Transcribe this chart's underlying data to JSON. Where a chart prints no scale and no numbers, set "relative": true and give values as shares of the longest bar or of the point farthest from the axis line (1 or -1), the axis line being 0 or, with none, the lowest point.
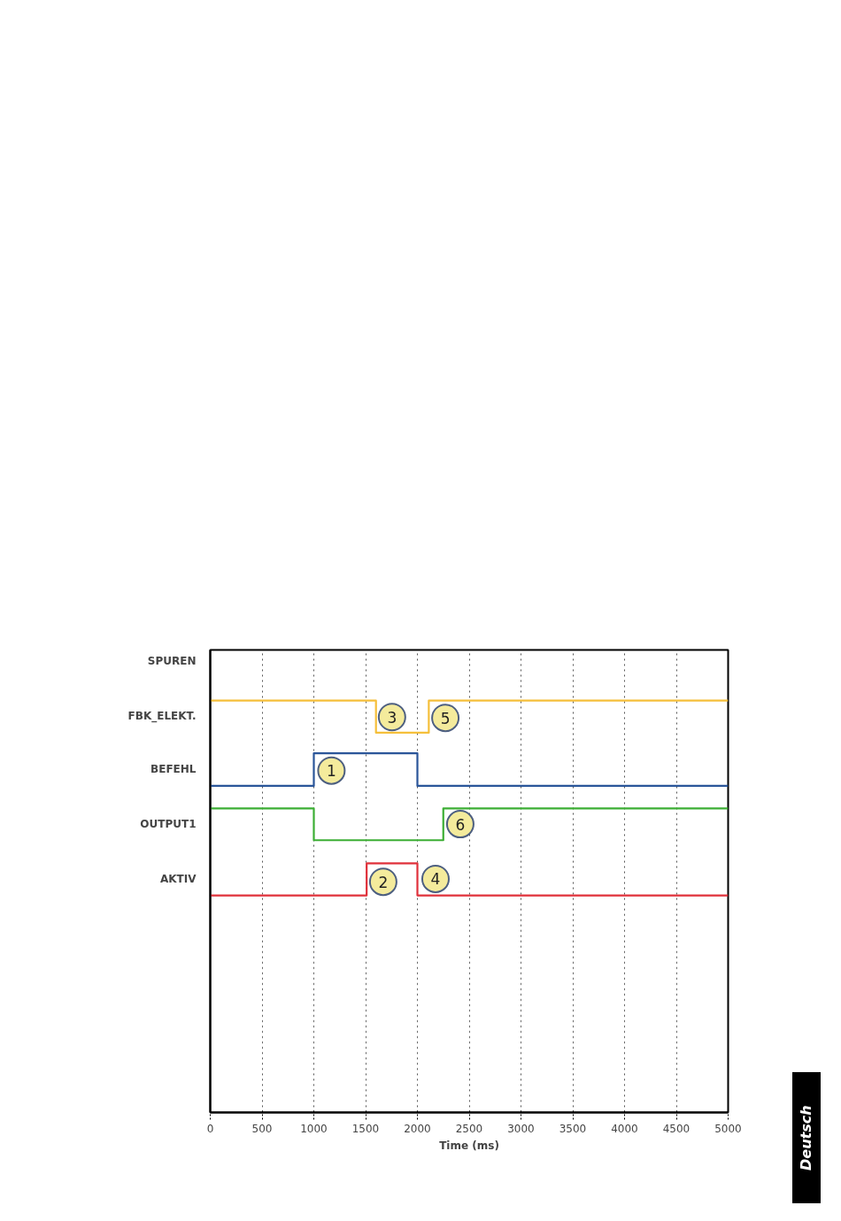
{
  "chart_data": {
    "type": "step",
    "xlabel": "Time (ms)",
    "relative": true,
    "xlim": [
      0,
      5000
    ],
    "xticks": [
      0,
      500,
      1000,
      1500,
      2000,
      2500,
      3000,
      3500,
      4000,
      4500,
      5000
    ],
    "grid": "x",
    "line_style": "solid",
    "series": [
      {
        "name": "FBK_ELEKT.",
        "color": "#f5bf3a",
        "x": [
          0,
          1600,
          2110,
          5000
        ],
        "values": [
          1.0,
          0.922,
          1.0,
          1.0
        ]
      },
      {
        "name": "BEFEHL",
        "color": "#2a5599",
        "x": [
          0,
          1000,
          2000,
          5000
        ],
        "values": [
          0.793,
          0.872,
          0.793,
          0.793
        ]
      },
      {
        "name": "OUTPUT1",
        "color": "#3cae34",
        "x": [
          0,
          1000,
          2250,
          5000
        ],
        "values": [
          0.738,
          0.661,
          0.738,
          0.738
        ]
      },
      {
        "name": "AKTIV",
        "color": "#e0303a",
        "x": [
          0,
          1510,
          2000,
          5000
        ],
        "values": [
          0.527,
          0.605,
          0.527,
          0.527
        ]
      }
    ],
    "annotations": [
      "SPUREN",
      {
        "text": "1",
        "x": 1170,
        "y": 0.83
      },
      {
        "text": "2",
        "x": 1670,
        "y": 0.56
      },
      {
        "text": "3",
        "x": 1755,
        "y": 0.96
      },
      {
        "text": "4",
        "x": 2175,
        "y": 0.567
      },
      {
        "text": "5",
        "x": 2270,
        "y": 0.958
      },
      {
        "text": "6",
        "x": 2414,
        "y": 0.7
      },
      "Deutsch"
    ]
  }
}
